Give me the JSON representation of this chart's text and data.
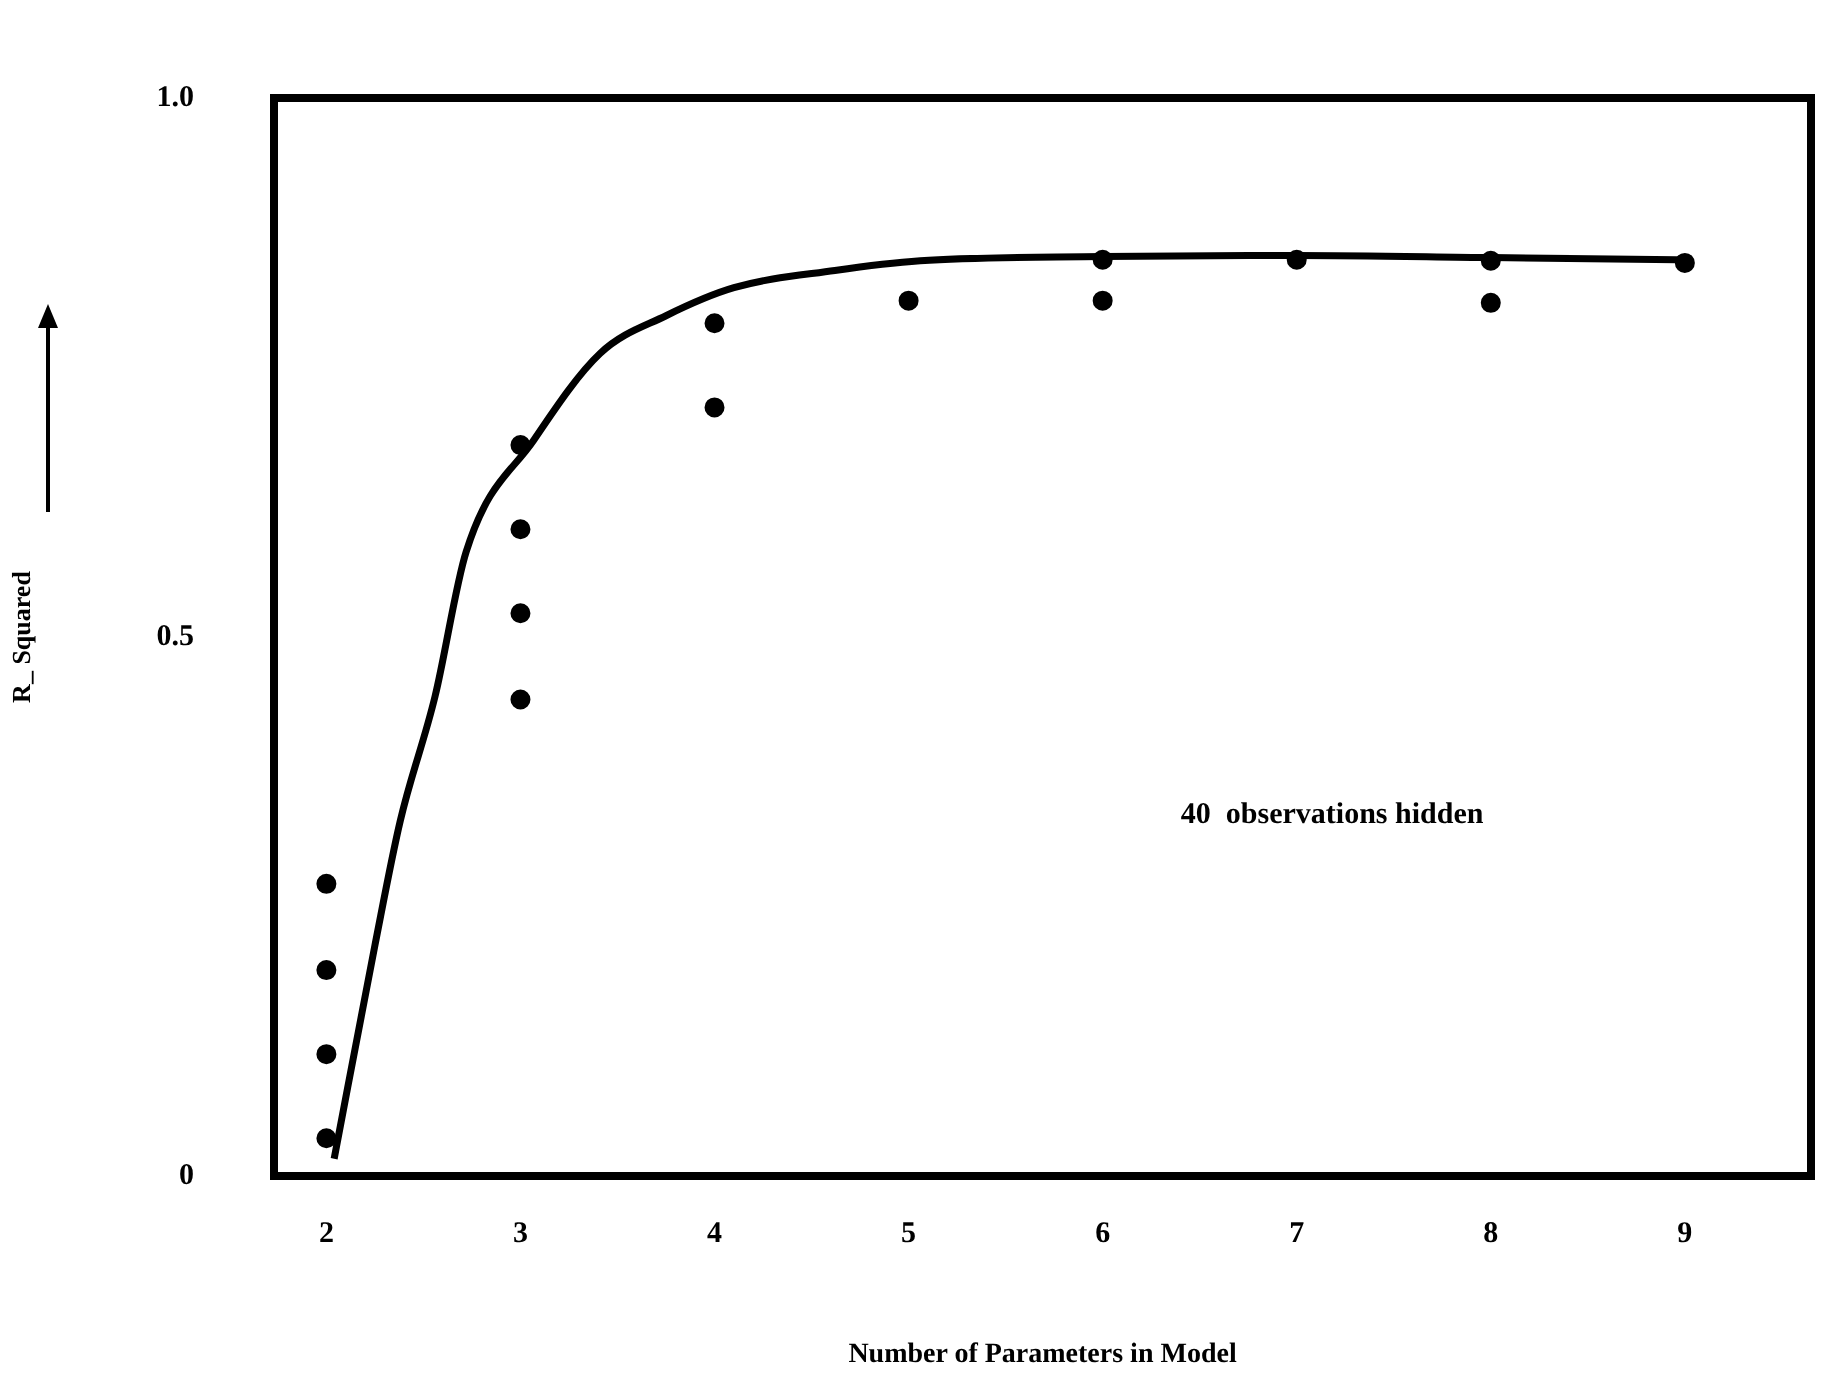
{
  "chart_data": {
    "type": "scatter",
    "xlabel": "Number of Parameters in Model",
    "ylabel": "R_ Squared",
    "annotations": [
      "40  observations hidden"
    ],
    "xlim": [
      1.73,
      9.65
    ],
    "ylim": [
      0,
      1.0
    ],
    "xticks": [
      2,
      3,
      4,
      5,
      6,
      7,
      8,
      9
    ],
    "yticks": [
      0,
      {
        "value": 0.5,
        "label": "0.5"
      },
      {
        "value": 1,
        "label": "1.0"
      }
    ],
    "series": [
      {
        "marker": "circle",
        "color": "#000000",
        "x": [
          2,
          2,
          2,
          2,
          3,
          3,
          3,
          3,
          4,
          4,
          5,
          6,
          6,
          7,
          8,
          8,
          9
        ],
        "values": [
          0.271,
          0.191,
          0.113,
          0.035,
          0.678,
          0.6,
          0.522,
          0.442,
          0.791,
          0.713,
          0.812,
          0.812,
          0.85,
          0.85,
          0.81,
          0.849,
          0.847
        ]
      },
      {
        "type": "line",
        "marker": "none",
        "color": "#000000",
        "x": [
          2.04,
          2.25,
          2.38,
          2.56,
          2.72,
          3.07,
          3.41,
          3.75,
          4.1,
          4.62,
          5.06,
          6,
          7,
          8,
          8.99
        ],
        "values": [
          0.016,
          0.214,
          0.329,
          0.445,
          0.579,
          0.683,
          0.763,
          0.798,
          0.824,
          0.84,
          0.849,
          0.853,
          0.854,
          0.852,
          0.85
        ]
      }
    ]
  }
}
